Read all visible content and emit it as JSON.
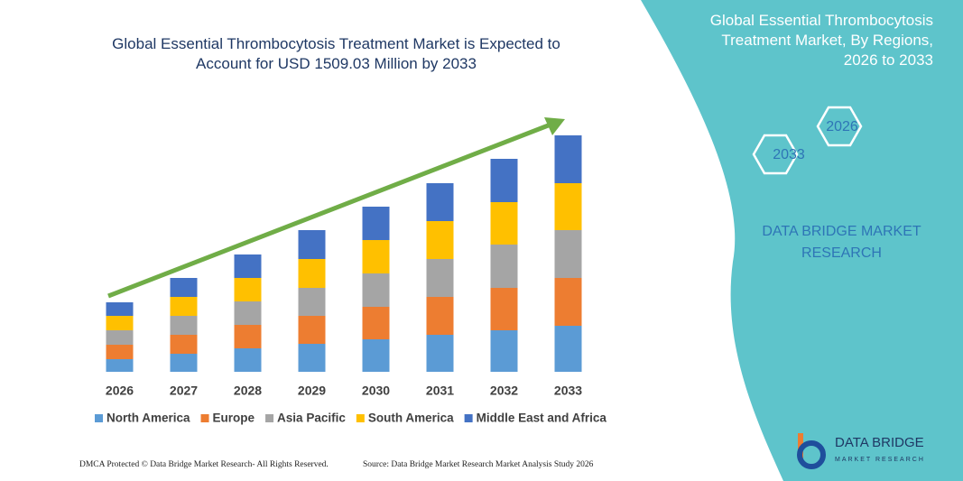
{
  "chart_data": {
    "type": "stacked-bar",
    "title": "Global Essential Thrombocytosis Treatment Market is Expected to Account for USD 1509.03 Million by 2033",
    "categories": [
      "2026",
      "2027",
      "2028",
      "2029",
      "2030",
      "2031",
      "2032",
      "2033"
    ],
    "series": [
      {
        "name": "North America",
        "color": "#5b9bd5",
        "values": [
          14,
          20,
          26,
          31,
          36,
          41,
          46,
          51
        ]
      },
      {
        "name": "Europe",
        "color": "#ed7d31",
        "values": [
          16,
          21,
          26,
          31,
          36,
          42,
          47,
          53
        ]
      },
      {
        "name": "Asia Pacific",
        "color": "#a5a5a5",
        "values": [
          16,
          21,
          26,
          31,
          37,
          42,
          48,
          53
        ]
      },
      {
        "name": "South America",
        "color": "#ffc000",
        "values": [
          16,
          21,
          26,
          32,
          37,
          42,
          47,
          52
        ]
      },
      {
        "name": "Middle East and Africa",
        "color": "#4472c4",
        "values": [
          15,
          21,
          26,
          32,
          37,
          42,
          48,
          53
        ]
      }
    ],
    "ylim": [
      0,
      270
    ]
  },
  "panel": {
    "title": "Global Essential Thrombocytosis Treatment Market, By Regions, 2026 to 2033",
    "year_start": "2026",
    "year_end": "2033",
    "brand": "DATA BRIDGE MARKET RESEARCH"
  },
  "logo": {
    "name": "DATA BRIDGE",
    "tagline": "MARKET RESEARCH"
  },
  "footer": {
    "left": "DMCA Protected © Data Bridge Market Research- All Rights Reserved.",
    "right": "Source: Data Bridge Market Research Market Analysis Study 2026"
  }
}
